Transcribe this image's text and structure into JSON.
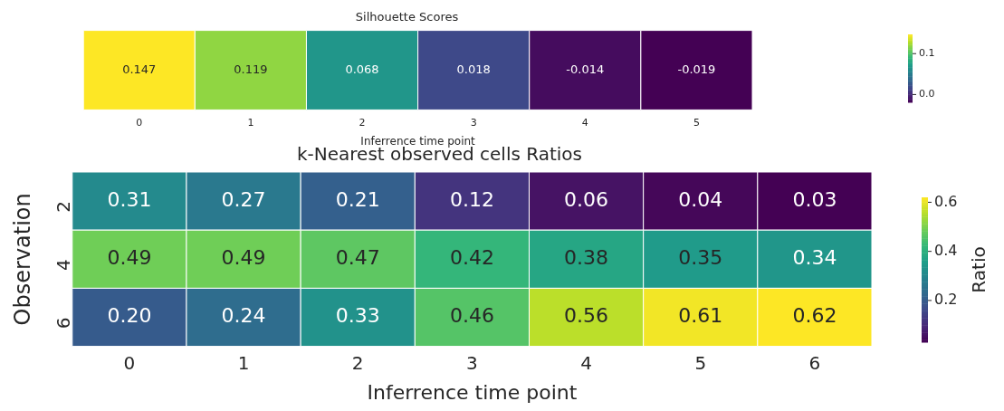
{
  "chart_data": [
    {
      "type": "heatmap",
      "title": "Silhouette Scores",
      "xlabel": "Inferrence time point",
      "categories": [
        "0",
        "1",
        "2",
        "3",
        "4",
        "5"
      ],
      "y_categories": [
        null
      ],
      "cells": [
        [
          0.147,
          0.119,
          0.068,
          0.018,
          -0.014,
          -0.019
        ]
      ],
      "data_labels": true,
      "clim": [
        -0.019,
        0.147
      ],
      "cticks": [
        {
          "value": 0,
          "label": "0.0"
        },
        0.1
      ]
    },
    {
      "type": "heatmap",
      "title": "k-Nearest observed cells Ratios",
      "xlabel": "Inferrence time point",
      "ylabel": "Observation",
      "clabel": "Ratio",
      "categories": [
        "0",
        "1",
        "2",
        "3",
        "4",
        "5",
        "6"
      ],
      "y_categories": [
        "2",
        "4",
        "6"
      ],
      "cells": [
        [
          0.31,
          0.27,
          0.21,
          0.12,
          0.06,
          0.04,
          0.03
        ],
        [
          0.49,
          0.49,
          0.47,
          0.42,
          0.38,
          0.35,
          0.34
        ],
        [
          0.2,
          0.24,
          0.33,
          0.46,
          0.56,
          0.61,
          0.62
        ]
      ],
      "cell_labels": [
        [
          "0.31",
          "0.27",
          "0.21",
          "0.12",
          "0.06",
          "0.04",
          "0.03"
        ],
        [
          "0.49",
          "0.49",
          "0.47",
          "0.42",
          "0.38",
          "0.35",
          "0.34"
        ],
        [
          "0.20",
          "0.24",
          "0.33",
          "0.46",
          "0.56",
          "0.61",
          "0.62"
        ]
      ],
      "clim": [
        0.03,
        0.62
      ],
      "cticks": [
        0.2,
        0.4,
        0.6
      ]
    }
  ]
}
